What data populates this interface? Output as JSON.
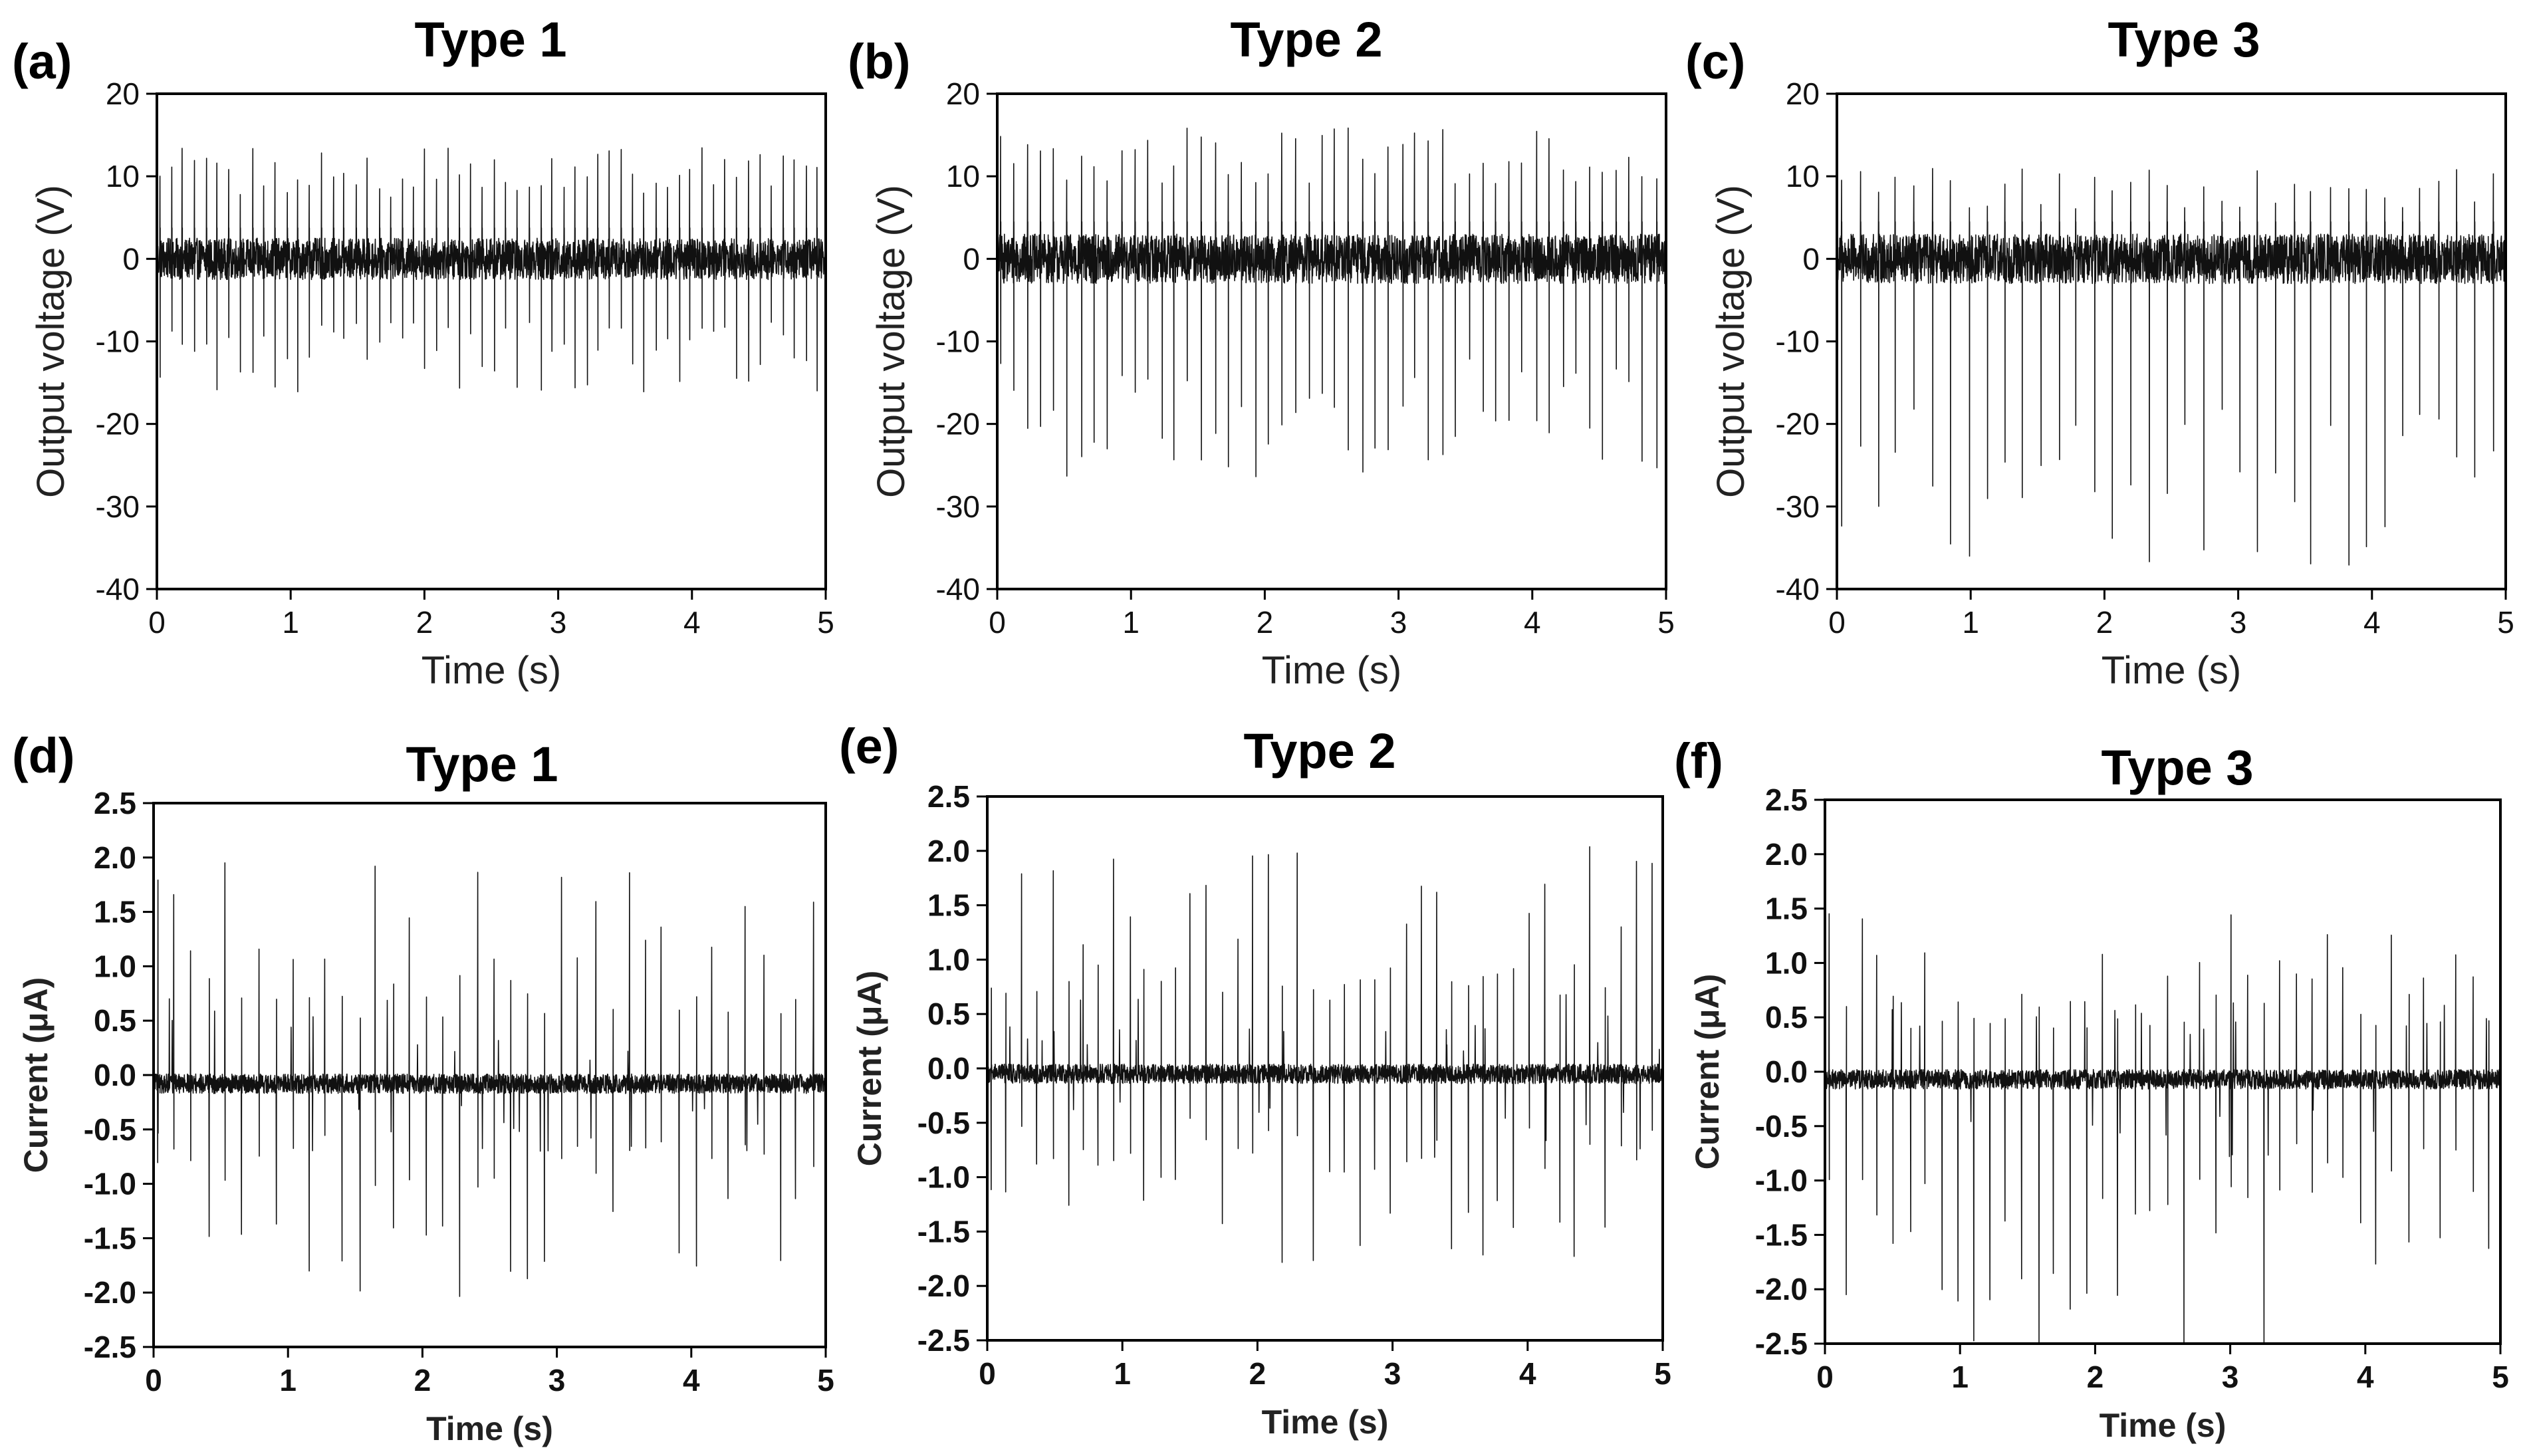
{
  "chart_data": [
    {
      "id": "a",
      "panel_label": "(a)",
      "title": "Type 1",
      "type": "line",
      "xlabel": "Time (s)",
      "ylabel": "Output voltage (V)",
      "xlim": [
        0,
        5
      ],
      "ylim": [
        -40,
        20
      ],
      "xticks": [
        "0",
        "1",
        "2",
        "3",
        "4",
        "5"
      ],
      "yticks": [
        "20",
        "10",
        "0",
        "-10",
        "-20",
        "-30",
        "-40"
      ],
      "series": [
        {
          "name": "Output voltage",
          "pulse_count": 58,
          "peak_max": 13.5,
          "peak_min": -16.5,
          "baseline_noise": 2.5
        }
      ]
    },
    {
      "id": "b",
      "panel_label": "(b)",
      "title": "Type 2",
      "type": "line",
      "xlabel": "Time (s)",
      "ylabel": "Output voltage (V)",
      "xlim": [
        0,
        5
      ],
      "ylim": [
        -40,
        20
      ],
      "xticks": [
        "0",
        "1",
        "2",
        "3",
        "4",
        "5"
      ],
      "yticks": [
        "20",
        "10",
        "0",
        "-10",
        "-20",
        "-30",
        "-40"
      ],
      "series": [
        {
          "name": "Output voltage",
          "pulse_count": 50,
          "peak_max": 16,
          "peak_min": -26.5,
          "baseline_noise": 3
        }
      ]
    },
    {
      "id": "c",
      "panel_label": "(c)",
      "title": "Type 3",
      "type": "line",
      "xlabel": "Time (s)",
      "ylabel": "Output voltage (V)",
      "xlim": [
        0,
        5
      ],
      "ylim": [
        -40,
        20
      ],
      "xticks": [
        "0",
        "1",
        "2",
        "3",
        "4",
        "5"
      ],
      "yticks": [
        "20",
        "10",
        "0",
        "-10",
        "-20",
        "-30",
        "-40"
      ],
      "series": [
        {
          "name": "Output voltage",
          "pulse_count": 37,
          "peak_max": 11,
          "peak_min": -38.5,
          "baseline_noise": 3
        }
      ]
    },
    {
      "id": "d",
      "panel_label": "(d)",
      "title": "Type 1",
      "type": "line",
      "xlabel": "Time (s)",
      "ylabel": "Current (μA)",
      "xlim": [
        0,
        5
      ],
      "ylim": [
        -2.5,
        2.5
      ],
      "xticks": [
        "0",
        "1",
        "2",
        "3",
        "4",
        "5"
      ],
      "yticks": [
        "2.5",
        "2.0",
        "1.5",
        "1.0",
        "0.5",
        "0.0",
        "-0.5",
        "-1.0",
        "-1.5",
        "-2.0",
        "-2.5"
      ],
      "series": [
        {
          "name": "Current",
          "pulse_count": 40,
          "peak_max": 2.05,
          "peak_min": -2.0,
          "baseline": -0.08
        }
      ]
    },
    {
      "id": "e",
      "panel_label": "(e)",
      "title": "Type 2",
      "type": "line",
      "xlabel": "Time (s)",
      "ylabel": "Current (μA)",
      "xlim": [
        0,
        5
      ],
      "ylim": [
        -2.5,
        2.5
      ],
      "xticks": [
        "0",
        "1",
        "2",
        "3",
        "4",
        "5"
      ],
      "yticks": [
        "2.5",
        "2.0",
        "1.5",
        "1.0",
        "0.5",
        "0.0",
        "-0.5",
        "-1.0",
        "-1.5",
        "-2.0",
        "-2.5"
      ],
      "series": [
        {
          "name": "Current",
          "pulse_count": 44,
          "peak_max": 2.1,
          "peak_min": -1.75,
          "baseline": -0.05
        }
      ]
    },
    {
      "id": "f",
      "panel_label": "(f)",
      "title": "Type 3",
      "type": "line",
      "xlabel": "Time (s)",
      "ylabel": "Current (μA)",
      "xlim": [
        0,
        5
      ],
      "ylim": [
        -2.5,
        2.5
      ],
      "xticks": [
        "0",
        "1",
        "2",
        "3",
        "4",
        "5"
      ],
      "yticks": [
        "2.5",
        "2.0",
        "1.5",
        "1.0",
        "0.5",
        "0.0",
        "-0.5",
        "-1.0",
        "-1.5",
        "-2.0",
        "-2.5"
      ],
      "series": [
        {
          "name": "Current",
          "pulse_count": 42,
          "peak_max": 1.6,
          "peak_min": -2.5,
          "baseline": -0.07
        }
      ]
    }
  ]
}
